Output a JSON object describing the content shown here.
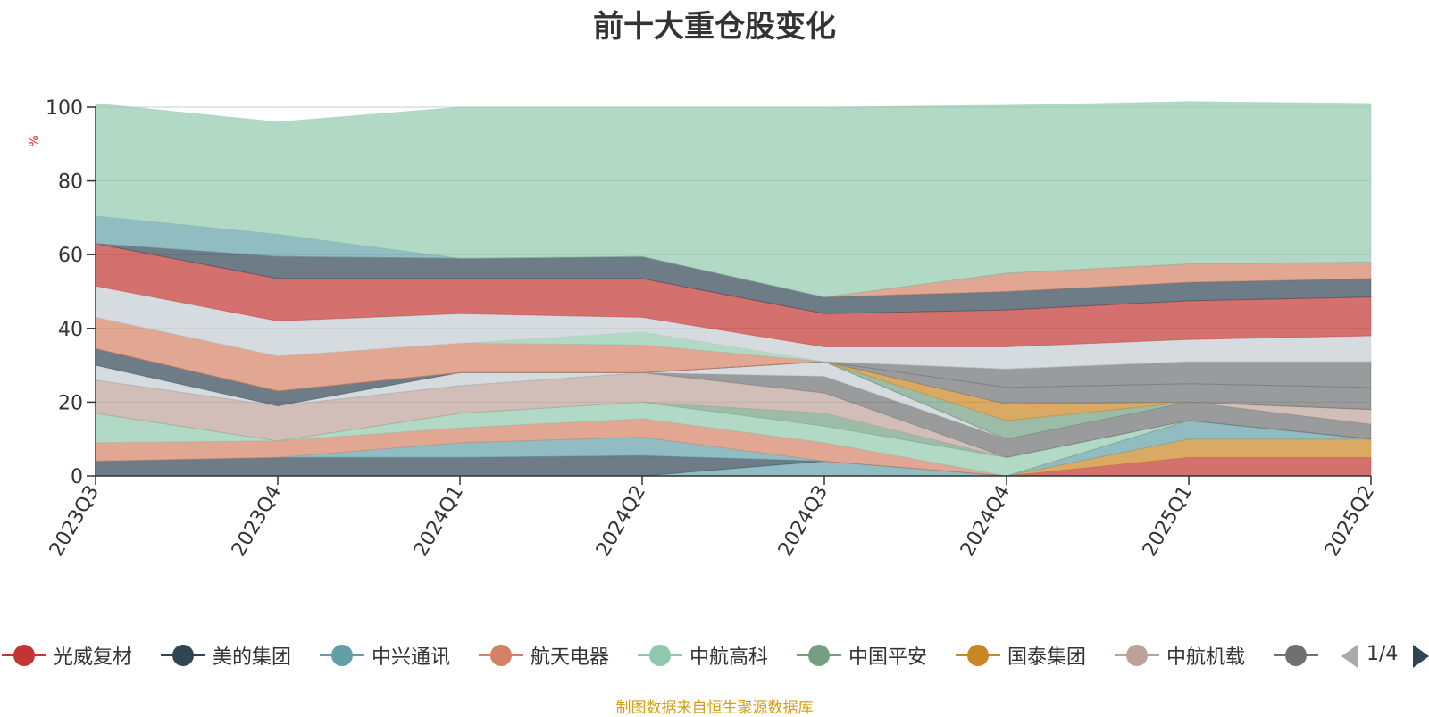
{
  "chart_data": {
    "type": "area",
    "title": "前十大重仓股变化",
    "ylabel": "%",
    "ylim": [
      0,
      100
    ],
    "yticks": [
      0,
      20,
      40,
      60,
      80,
      100
    ],
    "categories": [
      "2023Q3",
      "2023Q4",
      "2024Q1",
      "2024Q2",
      "2024Q3",
      "2024Q4",
      "2025Q1",
      "2025Q2"
    ],
    "stacked": true,
    "series": [
      {
        "name": "光威复材",
        "color": "#c23531",
        "values": [
          0,
          0,
          0,
          0,
          0,
          0,
          5,
          5
        ]
      },
      {
        "name": "国泰集团",
        "color": "#ca8622",
        "values": [
          0,
          0,
          0,
          0,
          0,
          0,
          5,
          5
        ]
      },
      {
        "name": "中兴通讯",
        "color": "#61a0a8",
        "values": [
          0,
          0,
          0,
          0,
          4,
          0,
          5,
          0
        ]
      },
      {
        "name": "美的集团",
        "color": "#2f4554",
        "values": [
          4,
          5,
          5,
          5.5,
          0,
          0,
          0,
          0
        ]
      },
      {
        "name": "中兴通讯",
        "color": "#61a0a8",
        "values": [
          0,
          0,
          4,
          5,
          0,
          0,
          0,
          0
        ]
      },
      {
        "name": "航天电器",
        "color": "#d48265",
        "values": [
          5,
          4.5,
          4,
          5,
          5,
          0,
          0,
          0
        ]
      },
      {
        "name": "中航高科",
        "color": "#91c7ae",
        "values": [
          8,
          0,
          4,
          4.5,
          4.5,
          5,
          0,
          0
        ]
      },
      {
        "name": "中国平安",
        "color": "#749f83",
        "values": [
          0,
          0,
          0,
          0,
          3.5,
          0,
          0,
          0
        ]
      },
      {
        "name": "中航机载",
        "color": "#bda29a",
        "values": [
          9,
          9.5,
          7.5,
          8,
          5.5,
          0,
          0,
          0
        ]
      },
      {
        "name": "",
        "color": "#6e7074",
        "values": [
          0,
          0,
          0,
          0,
          4.5,
          5,
          5,
          4
        ]
      },
      {
        "name": "",
        "color": "#c4ccd3",
        "values": [
          4,
          0,
          3.5,
          0,
          4,
          0,
          0,
          0
        ]
      },
      {
        "name": "",
        "color": "#2f4554",
        "values": [
          4.5,
          4,
          0,
          0,
          0,
          0,
          0,
          0
        ]
      },
      {
        "name": "",
        "color": "#bda29a",
        "values": [
          0,
          0,
          0,
          0,
          0,
          0,
          0,
          4
        ]
      },
      {
        "name": "",
        "color": "#749f83",
        "values": [
          0,
          0,
          0,
          0,
          0,
          5,
          0,
          0
        ]
      },
      {
        "name": "",
        "color": "#ca8622",
        "values": [
          0,
          0,
          0,
          0,
          0,
          4.5,
          0,
          0
        ]
      },
      {
        "name": "",
        "color": "#6e7074",
        "values": [
          0,
          0,
          0,
          0,
          0,
          4.5,
          5,
          6
        ]
      },
      {
        "name": "",
        "color": "#6e7074",
        "values": [
          0,
          0,
          0,
          0,
          0,
          5,
          6,
          7
        ]
      },
      {
        "name": "",
        "color": "#d48265",
        "values": [
          8.5,
          9.5,
          8,
          7.5,
          0,
          0,
          0,
          0
        ]
      },
      {
        "name": "",
        "color": "#91c7ae",
        "values": [
          0,
          0,
          0,
          3.5,
          0,
          0,
          0,
          0
        ]
      },
      {
        "name": "",
        "color": "#c4ccd3",
        "values": [
          8.5,
          9.5,
          8,
          4,
          4,
          6,
          6,
          7
        ]
      },
      {
        "name": "",
        "color": "#c23531",
        "values": [
          11.5,
          11.5,
          9.5,
          10.5,
          9,
          10,
          10.5,
          10.5
        ]
      },
      {
        "name": "",
        "color": "#2f4554",
        "values": [
          0,
          6,
          5.5,
          6,
          4.5,
          5,
          5,
          5
        ]
      },
      {
        "name": "",
        "color": "#d48265",
        "values": [
          0,
          0,
          0,
          0,
          0,
          5,
          5,
          4.5
        ]
      },
      {
        "name": "",
        "color": "#61a0a8",
        "values": [
          7.5,
          6,
          0,
          0,
          0,
          0,
          0,
          0
        ]
      },
      {
        "name": "",
        "color": "#91c7ae",
        "values": [
          30.5,
          30.5,
          41,
          40.5,
          51.5,
          45.5,
          44,
          43
        ]
      }
    ]
  },
  "legend": {
    "items": [
      {
        "label": "光威复材",
        "color": "#c23531"
      },
      {
        "label": "美的集团",
        "color": "#2f4554"
      },
      {
        "label": "中兴通讯",
        "color": "#61a0a8"
      },
      {
        "label": "航天电器",
        "color": "#d48265"
      },
      {
        "label": "中航高科",
        "color": "#91c7ae"
      },
      {
        "label": "中国平安",
        "color": "#749f83"
      },
      {
        "label": "国泰集团",
        "color": "#ca8622"
      },
      {
        "label": "中航机载",
        "color": "#bda29a"
      },
      {
        "label": "",
        "color": "#6e7074"
      }
    ],
    "page": "1/4"
  },
  "source_note": "制图数据来自恒生聚源数据库"
}
